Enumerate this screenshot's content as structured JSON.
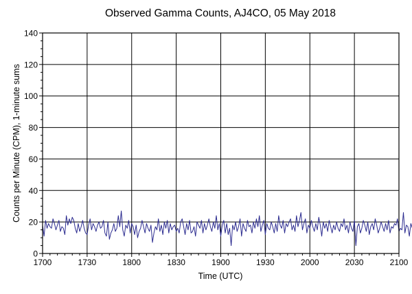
{
  "chart_data": {
    "type": "line",
    "title": "Observed Gamma Counts, AJ4CO, 05 May 2018",
    "xlabel": "Time (UTC)",
    "ylabel": "Counts per Minute (CPM), 1-minute sums",
    "x_tick_labels": [
      "1700",
      "1730",
      "1800",
      "1830",
      "1900",
      "1930",
      "2000",
      "2030",
      "2100"
    ],
    "y_ticks": [
      0,
      20,
      40,
      60,
      80,
      100,
      120,
      140
    ],
    "xlim_minutes_after_1700": [
      0,
      240
    ],
    "ylim": [
      0,
      140
    ],
    "grid": true,
    "legend": "none",
    "series": [
      {
        "color": "#2b2b8f",
        "x_start": "1700",
        "x_step_minutes": 1,
        "values": [
          18,
          11,
          21,
          16,
          19,
          17,
          16,
          22,
          19,
          15,
          18,
          21,
          14,
          17,
          16,
          12,
          24,
          18,
          22,
          19,
          23,
          21,
          16,
          13,
          19,
          14,
          17,
          21,
          16,
          13,
          12,
          18,
          22,
          15,
          19,
          17,
          14,
          18,
          20,
          16,
          17,
          21,
          13,
          11,
          20,
          9,
          13,
          15,
          19,
          14,
          16,
          24,
          17,
          27,
          15,
          11,
          18,
          16,
          21,
          13,
          19,
          17,
          12,
          18,
          10,
          14,
          16,
          21,
          17,
          13,
          19,
          16,
          14,
          18,
          7,
          13,
          17,
          15,
          22,
          14,
          18,
          12,
          20,
          16,
          21,
          13,
          19,
          15,
          17,
          18,
          14,
          16,
          13,
          20,
          22,
          17,
          12,
          19,
          15,
          21,
          13,
          14,
          17,
          11,
          20,
          18,
          16,
          21,
          13,
          19,
          15,
          18,
          22,
          17,
          14,
          20,
          16,
          24,
          15,
          19,
          11,
          18,
          21,
          13,
          19,
          12,
          16,
          5,
          18,
          15,
          20,
          14,
          17,
          22,
          11,
          19,
          16,
          14,
          21,
          17,
          18,
          13,
          20,
          16,
          22,
          17,
          24,
          14,
          18,
          21,
          12,
          19,
          16,
          15,
          20,
          17,
          13,
          19,
          14,
          24,
          18,
          16,
          21,
          13,
          19,
          17,
          20,
          22,
          15,
          18,
          14,
          24,
          17,
          21,
          26,
          15,
          19,
          22,
          13,
          18,
          16,
          21,
          17,
          14,
          19,
          15,
          23,
          18,
          11,
          20,
          16,
          19,
          14,
          21,
          17,
          13,
          18,
          15,
          20,
          16,
          14,
          19,
          17,
          22,
          15,
          18,
          13,
          20,
          16,
          14,
          21,
          5,
          17,
          19,
          13,
          16,
          21,
          18,
          14,
          20,
          12,
          17,
          19,
          15,
          22,
          18,
          13,
          16,
          20,
          17,
          14,
          19,
          15,
          21,
          13,
          17,
          16,
          19,
          18,
          22,
          14,
          16,
          15,
          26,
          13,
          18,
          17,
          11,
          19,
          16,
          14,
          17,
          12,
          21,
          15
        ]
      }
    ]
  }
}
